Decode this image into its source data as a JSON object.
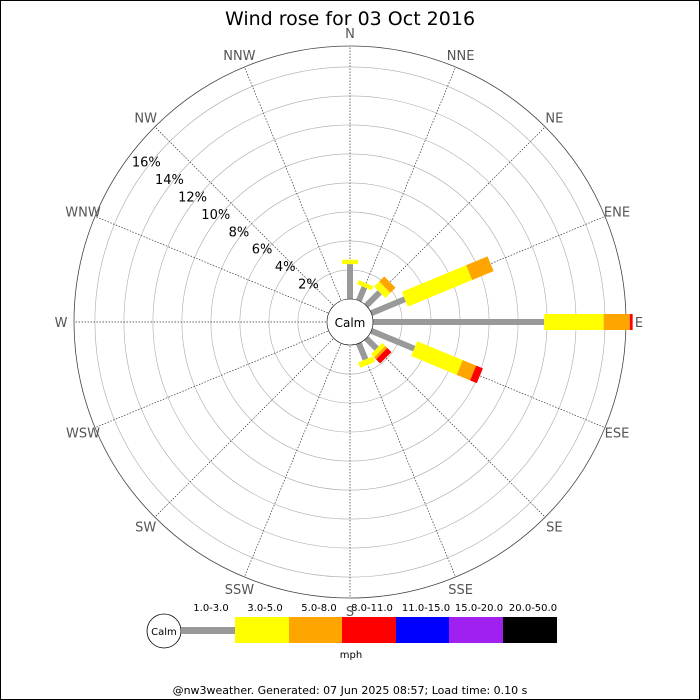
{
  "chart_data": {
    "type": "wind-rose",
    "title": "Wind rose for 03 Oct 2016",
    "directions": [
      "N",
      "NNE",
      "NE",
      "ENE",
      "E",
      "ESE",
      "SE",
      "SSE",
      "S",
      "SSW",
      "SW",
      "WSW",
      "W",
      "WNW",
      "NW",
      "NNW"
    ],
    "ring_labels": [
      "2%",
      "4%",
      "6%",
      "8%",
      "10%",
      "12%",
      "14%",
      "16%"
    ],
    "ring_values": [
      2,
      4,
      6,
      8,
      10,
      12,
      14,
      16
    ],
    "calm_label": "Calm",
    "calm_radius_pct": 0.9,
    "units_label": "mph",
    "speed_bins": [
      {
        "label": "1.0-3.0",
        "color": "#999999"
      },
      {
        "label": "3.0-5.0",
        "color": "#ffff00"
      },
      {
        "label": "5.0-8.0",
        "color": "#ffa500"
      },
      {
        "label": "8.0-11.0",
        "color": "#ff0000"
      },
      {
        "label": "11.0-15.0",
        "color": "#0000ff"
      },
      {
        "label": "15.0-20.0",
        "color": "#a020f0"
      },
      {
        "label": "20.0-50.0",
        "color": "#000000"
      }
    ],
    "series": [
      {
        "direction": "N",
        "values": [
          2.4,
          0.3,
          0,
          0,
          0,
          0,
          0
        ]
      },
      {
        "direction": "NNE",
        "values": [
          1.0,
          0.3,
          0,
          0,
          0,
          0,
          0
        ]
      },
      {
        "direction": "NE",
        "values": [
          1.3,
          0.5,
          0.5,
          0,
          0,
          0,
          0
        ]
      },
      {
        "direction": "ENE",
        "values": [
          2.5,
          4.8,
          1.6,
          0,
          0,
          0,
          0
        ]
      },
      {
        "direction": "E",
        "values": [
          11.8,
          4.1,
          1.8,
          0.2,
          0,
          0,
          0
        ]
      },
      {
        "direction": "ESE",
        "values": [
          3.2,
          3.4,
          1.0,
          0.5,
          0,
          0,
          0
        ]
      },
      {
        "direction": "SE",
        "values": [
          1.0,
          0.3,
          0.2,
          0.4,
          0,
          0,
          0
        ]
      },
      {
        "direction": "SSE",
        "values": [
          1.2,
          0.4,
          0,
          0,
          0,
          0,
          0
        ]
      }
    ]
  },
  "footer": "@nw3weather. Generated: 07 Jun 2025 08:57; Load time: 0.10 s"
}
